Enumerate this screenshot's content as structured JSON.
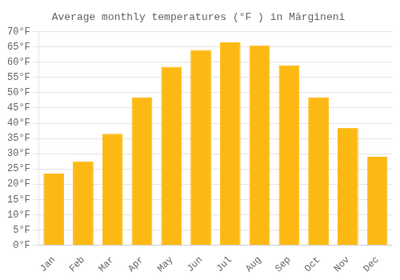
{
  "chart_data": {
    "type": "bar",
    "title": "Average monthly temperatures (°F ) in Mărgineni",
    "categories": [
      "Jan",
      "Feb",
      "Mar",
      "Apr",
      "May",
      "Jun",
      "Jul",
      "Aug",
      "Sep",
      "Oct",
      "Nov",
      "Dec"
    ],
    "values": [
      23.5,
      27.5,
      36.5,
      48.5,
      58.5,
      64.0,
      66.5,
      65.5,
      59.0,
      48.5,
      38.5,
      29.0
    ],
    "color": "#FDB913",
    "ylim": [
      0,
      70
    ],
    "yticks": [
      {
        "value": 0,
        "label": "0°F"
      },
      {
        "value": 5,
        "label": "5°F"
      },
      {
        "value": 10,
        "label": "10°F"
      },
      {
        "value": 15,
        "label": "15°F"
      },
      {
        "value": 20,
        "label": "20°F"
      },
      {
        "value": 25,
        "label": "25°F"
      },
      {
        "value": 30,
        "label": "30°F"
      },
      {
        "value": 35,
        "label": "35°F"
      },
      {
        "value": 40,
        "label": "40°F"
      },
      {
        "value": 45,
        "label": "45°F"
      },
      {
        "value": 50,
        "label": "50°F"
      },
      {
        "value": 55,
        "label": "55°F"
      },
      {
        "value": 60,
        "label": "60°F"
      },
      {
        "value": 65,
        "label": "65°F"
      },
      {
        "value": 70,
        "label": "70°F"
      }
    ],
    "grid": true
  }
}
